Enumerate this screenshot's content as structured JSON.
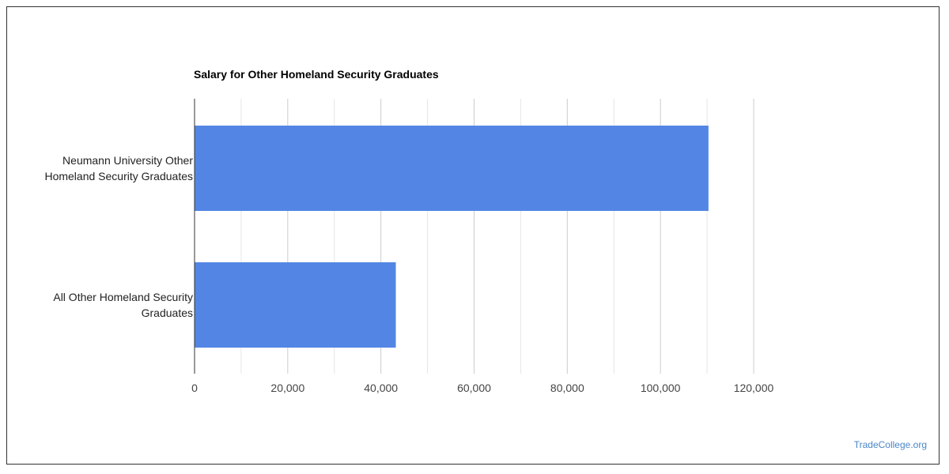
{
  "chart_data": {
    "type": "bar",
    "orientation": "horizontal",
    "title": "Salary for Other Homeland Security Graduates",
    "categories": [
      [
        "Neumann University Other",
        "Homeland Security Graduates"
      ],
      [
        "All Other Homeland Security",
        "Graduates"
      ]
    ],
    "values": [
      110300,
      43200
    ],
    "xlim": [
      0,
      120000
    ],
    "ticks": [
      0,
      20000,
      40000,
      60000,
      80000,
      100000,
      120000
    ],
    "tick_labels": [
      "0",
      "20,000",
      "40,000",
      "60,000",
      "80,000",
      "100,000",
      "120,000"
    ],
    "minor_ticks": [
      10000,
      30000,
      50000,
      70000,
      90000,
      110000
    ],
    "grid": true,
    "legend": "none",
    "bar_color": "#5386e4"
  },
  "footer": {
    "source": "TradeCollege.org"
  }
}
